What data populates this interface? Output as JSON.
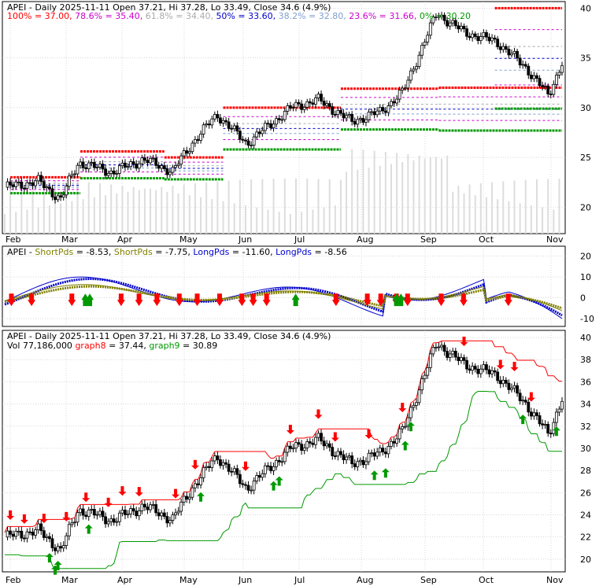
{
  "chart_data": [
    {
      "type": "line",
      "panel": "price-fib",
      "title": "APEI - Daily 2025-11-11 Open 37.21, Hi 37.28, Lo 33.49, Close 34.6 (4.9%)",
      "fib_legend": [
        {
          "label": "100% = 37.00,",
          "color": "#ff0000"
        },
        {
          "label": "78.6% = 35.40,",
          "color": "#cc00cc"
        },
        {
          "label": "61.8% = 34.40,",
          "color": "#aaaaaa"
        },
        {
          "label": "50% = 33.60,",
          "color": "#0000cc"
        },
        {
          "label": "38.2% = 32.80,",
          "color": "#7f9fcf"
        },
        {
          "label": "23.6% = 31.66,",
          "color": "#cc00cc"
        },
        {
          "label": "0% = 30.20",
          "color": "#009900"
        }
      ],
      "ylim": [
        17.5,
        40.5
      ],
      "yticks": [
        20,
        25,
        30,
        35,
        40
      ],
      "xticks": [
        "Feb",
        "Mar",
        "Apr",
        "May",
        "Jun",
        "Jul",
        "Aug",
        "Sep",
        "Oct",
        "Nov"
      ],
      "grid": true
    },
    {
      "type": "line",
      "panel": "indicator",
      "title": "APEI - ShortPds = -8.53, ShortPds = -7.75, LongPds = -11.60, LongPds = -8.56",
      "legend": [
        {
          "label": "APEI - ",
          "color": "#000000"
        },
        {
          "label": "ShortPds",
          "color": "#808000"
        },
        {
          "label": " = -8.53, ",
          "color": "#000000"
        },
        {
          "label": "ShortPds",
          "color": "#808000"
        },
        {
          "label": " = -7.75, ",
          "color": "#000000"
        },
        {
          "label": "LongPds",
          "color": "#0000cc"
        },
        {
          "label": " = -11.60, ",
          "color": "#000000"
        },
        {
          "label": "LongPds",
          "color": "#0000cc"
        },
        {
          "label": " = -8.56",
          "color": "#000000"
        }
      ],
      "ylim": [
        -13,
        24
      ],
      "yticks": [
        -10,
        0,
        10,
        20
      ],
      "series": [
        {
          "name": "ShortPds",
          "color": "#808000"
        },
        {
          "name": "LongPds",
          "color": "#0000cc"
        }
      ],
      "grid": true
    },
    {
      "type": "line",
      "panel": "price-trail",
      "title": "APEI - Daily 2025-11-11 Open 37.21, Hi 37.28, Lo 33.49, Close 34.6 (4.9%)",
      "legend": [
        {
          "label": "Vol 77,186,000 ",
          "color": "#000000"
        },
        {
          "label": "graph8",
          "color": "#ff0000"
        },
        {
          "label": " = 37.44, ",
          "color": "#000000"
        },
        {
          "label": "graph9",
          "color": "#009900"
        },
        {
          "label": " = 30.89",
          "color": "#000000"
        }
      ],
      "ylim": [
        19,
        40.5
      ],
      "yticks": [
        20,
        22,
        24,
        26,
        28,
        30,
        32,
        34,
        36,
        38,
        40
      ],
      "xticks": [
        "Feb",
        "Mar",
        "Apr",
        "May",
        "Jun",
        "Jul",
        "Aug",
        "Sep",
        "Oct",
        "Nov"
      ],
      "series": [
        {
          "name": "graph8",
          "color": "#ff0000"
        },
        {
          "name": "graph9",
          "color": "#009900"
        }
      ],
      "grid": true
    }
  ],
  "colors": {
    "candle": "#000000",
    "resistance": "#ff0000",
    "support": "#009900",
    "grid": "#c0c0c0",
    "volume": "#dddddd"
  }
}
